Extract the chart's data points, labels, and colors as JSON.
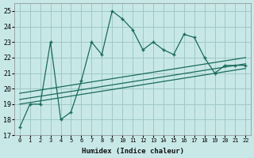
{
  "xlabel": "Humidex (Indice chaleur)",
  "bg_color": "#c8e8e8",
  "grid_color": "#a0c8c8",
  "line_color": "#1a6b5a",
  "xlim": [
    -0.5,
    22.5
  ],
  "ylim": [
    17,
    25.5
  ],
  "yticks": [
    17,
    18,
    19,
    20,
    21,
    22,
    23,
    24,
    25
  ],
  "xticks": [
    0,
    1,
    2,
    3,
    4,
    5,
    6,
    7,
    8,
    9,
    10,
    11,
    12,
    13,
    14,
    15,
    16,
    17,
    18,
    19,
    20,
    21,
    22
  ],
  "main_x": [
    0,
    1,
    2,
    3,
    4,
    5,
    6,
    7,
    8,
    9,
    10,
    11,
    12,
    13,
    14,
    15,
    16,
    17,
    18,
    19,
    20,
    21,
    22
  ],
  "main_y": [
    17.5,
    19.0,
    19.0,
    23.0,
    18.0,
    18.5,
    20.5,
    23.0,
    22.2,
    25.0,
    24.5,
    23.8,
    22.5,
    23.0,
    22.5,
    22.2,
    23.5,
    23.3,
    22.0,
    21.0,
    21.5,
    21.5,
    21.5
  ],
  "trend1_x": [
    0,
    22
  ],
  "trend1_y": [
    19.0,
    21.3
  ],
  "trend2_x": [
    0,
    22
  ],
  "trend2_y": [
    19.3,
    21.6
  ],
  "trend3_x": [
    0,
    22
  ],
  "trend3_y": [
    19.7,
    22.0
  ]
}
